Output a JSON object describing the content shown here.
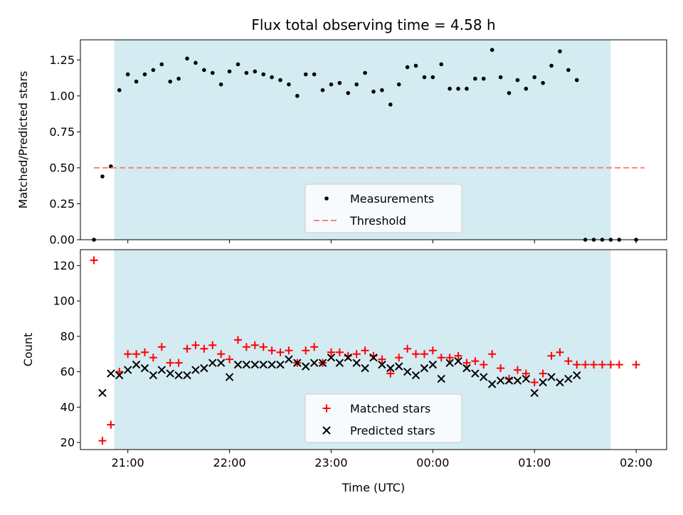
{
  "chart_data": [
    {
      "type": "scatter",
      "title": "Flux total observing time = 4.58 h",
      "xlabel": "",
      "ylabel": "Matched/Predicted stars",
      "ylim": [
        0.0,
        1.39
      ],
      "yticks": [
        0.0,
        0.25,
        0.5,
        0.75,
        1.0,
        1.25
      ],
      "ytick_labels": [
        "0.00",
        "0.25",
        "0.50",
        "0.75",
        "1.00",
        "1.25"
      ],
      "grid": false,
      "legend_position": "lower center",
      "observing_window": [
        "20:52",
        "01:45"
      ],
      "observing_window_color": "#add8e6",
      "series": [
        {
          "name": "Measurements",
          "marker": "dot",
          "color": "#000000",
          "points": [
            [
              "20:40",
              0.0
            ],
            [
              "20:45",
              0.44
            ],
            [
              "20:50",
              0.51
            ],
            [
              "20:55",
              1.04
            ],
            [
              "21:00",
              1.15
            ],
            [
              "21:05",
              1.1
            ],
            [
              "21:10",
              1.15
            ],
            [
              "21:15",
              1.18
            ],
            [
              "21:20",
              1.22
            ],
            [
              "21:25",
              1.1
            ],
            [
              "21:30",
              1.12
            ],
            [
              "21:35",
              1.26
            ],
            [
              "21:40",
              1.23
            ],
            [
              "21:45",
              1.18
            ],
            [
              "21:50",
              1.16
            ],
            [
              "21:55",
              1.08
            ],
            [
              "22:00",
              1.17
            ],
            [
              "22:05",
              1.22
            ],
            [
              "22:10",
              1.16
            ],
            [
              "22:15",
              1.17
            ],
            [
              "22:20",
              1.15
            ],
            [
              "22:25",
              1.13
            ],
            [
              "22:30",
              1.11
            ],
            [
              "22:35",
              1.08
            ],
            [
              "22:40",
              1.0
            ],
            [
              "22:45",
              1.15
            ],
            [
              "22:50",
              1.15
            ],
            [
              "22:55",
              1.04
            ],
            [
              "23:00",
              1.08
            ],
            [
              "23:05",
              1.09
            ],
            [
              "23:10",
              1.02
            ],
            [
              "23:15",
              1.08
            ],
            [
              "23:20",
              1.16
            ],
            [
              "23:25",
              1.03
            ],
            [
              "23:30",
              1.04
            ],
            [
              "23:35",
              0.94
            ],
            [
              "23:40",
              1.08
            ],
            [
              "23:45",
              1.2
            ],
            [
              "23:50",
              1.21
            ],
            [
              "23:55",
              1.13
            ],
            [
              "00:00",
              1.13
            ],
            [
              "00:05",
              1.22
            ],
            [
              "00:10",
              1.05
            ],
            [
              "00:15",
              1.05
            ],
            [
              "00:20",
              1.05
            ],
            [
              "00:25",
              1.12
            ],
            [
              "00:30",
              1.12
            ],
            [
              "00:35",
              1.32
            ],
            [
              "00:40",
              1.13
            ],
            [
              "00:45",
              1.02
            ],
            [
              "00:50",
              1.11
            ],
            [
              "00:55",
              1.05
            ],
            [
              "01:00",
              1.13
            ],
            [
              "01:05",
              1.09
            ],
            [
              "01:10",
              1.21
            ],
            [
              "01:15",
              1.31
            ],
            [
              "01:20",
              1.18
            ],
            [
              "01:25",
              1.11
            ],
            [
              "01:30",
              0.0
            ],
            [
              "01:35",
              0.0
            ],
            [
              "01:40",
              0.0
            ],
            [
              "01:45",
              0.0
            ],
            [
              "01:50",
              0.0
            ],
            [
              "02:00",
              0.0
            ]
          ]
        },
        {
          "name": "Threshold",
          "marker": "dashed-line",
          "color": "#ff7f7f",
          "points": [
            [
              "20:40",
              0.5
            ],
            [
              "02:05",
              0.5
            ]
          ]
        }
      ]
    },
    {
      "type": "scatter",
      "title": "",
      "xlabel": "Time (UTC)",
      "ylabel": "Count",
      "ylim": [
        16,
        129
      ],
      "yticks": [
        20,
        40,
        60,
        80,
        100,
        120
      ],
      "ytick_labels": [
        "20",
        "40",
        "60",
        "80",
        "100",
        "120"
      ],
      "x_range": [
        "20:32",
        "02:18"
      ],
      "xticks": [
        "21:00",
        "22:00",
        "23:00",
        "00:00",
        "01:00",
        "02:00"
      ],
      "xtick_labels": [
        "21:00",
        "22:00",
        "23:00",
        "00:00",
        "01:00",
        "02:00"
      ],
      "grid": false,
      "legend_position": "lower center",
      "observing_window": [
        "20:52",
        "01:45"
      ],
      "observing_window_color": "#add8e6",
      "series": [
        {
          "name": "Matched stars",
          "marker": "plus",
          "color": "#ff0000",
          "points": [
            [
              "20:40",
              123
            ],
            [
              "20:45",
              21
            ],
            [
              "20:50",
              30
            ],
            [
              "20:55",
              60
            ],
            [
              "21:00",
              70
            ],
            [
              "21:05",
              70
            ],
            [
              "21:10",
              71
            ],
            [
              "21:15",
              68
            ],
            [
              "21:20",
              74
            ],
            [
              "21:25",
              65
            ],
            [
              "21:30",
              65
            ],
            [
              "21:35",
              73
            ],
            [
              "21:40",
              75
            ],
            [
              "21:45",
              73
            ],
            [
              "21:50",
              75
            ],
            [
              "21:55",
              70
            ],
            [
              "22:00",
              67
            ],
            [
              "22:05",
              78
            ],
            [
              "22:10",
              74
            ],
            [
              "22:15",
              75
            ],
            [
              "22:20",
              74
            ],
            [
              "22:25",
              72
            ],
            [
              "22:30",
              71
            ],
            [
              "22:35",
              72
            ],
            [
              "22:40",
              65
            ],
            [
              "22:45",
              72
            ],
            [
              "22:50",
              74
            ],
            [
              "22:55",
              65
            ],
            [
              "23:00",
              71
            ],
            [
              "23:05",
              71
            ],
            [
              "23:10",
              69
            ],
            [
              "23:15",
              70
            ],
            [
              "23:20",
              72
            ],
            [
              "23:25",
              69
            ],
            [
              "23:30",
              67
            ],
            [
              "23:35",
              59
            ],
            [
              "23:40",
              68
            ],
            [
              "23:45",
              73
            ],
            [
              "23:50",
              70
            ],
            [
              "23:55",
              70
            ],
            [
              "00:00",
              72
            ],
            [
              "00:05",
              68
            ],
            [
              "00:10",
              68
            ],
            [
              "00:15",
              69
            ],
            [
              "00:20",
              65
            ],
            [
              "00:25",
              66
            ],
            [
              "00:30",
              64
            ],
            [
              "00:35",
              70
            ],
            [
              "00:40",
              62
            ],
            [
              "00:45",
              56
            ],
            [
              "00:50",
              61
            ],
            [
              "00:55",
              59
            ],
            [
              "01:00",
              54
            ],
            [
              "01:05",
              59
            ],
            [
              "01:10",
              69
            ],
            [
              "01:15",
              71
            ],
            [
              "01:20",
              66
            ],
            [
              "01:25",
              64
            ],
            [
              "01:30",
              64
            ],
            [
              "01:35",
              64
            ],
            [
              "01:40",
              64
            ],
            [
              "01:45",
              64
            ],
            [
              "01:50",
              64
            ],
            [
              "02:00",
              64
            ]
          ]
        },
        {
          "name": "Predicted stars",
          "marker": "x",
          "color": "#000000",
          "points": [
            [
              "20:45",
              48
            ],
            [
              "20:50",
              59
            ],
            [
              "20:55",
              58
            ],
            [
              "21:00",
              61
            ],
            [
              "21:05",
              64
            ],
            [
              "21:10",
              62
            ],
            [
              "21:15",
              58
            ],
            [
              "21:20",
              61
            ],
            [
              "21:25",
              59
            ],
            [
              "21:30",
              58
            ],
            [
              "21:35",
              58
            ],
            [
              "21:40",
              61
            ],
            [
              "21:45",
              62
            ],
            [
              "21:50",
              65
            ],
            [
              "21:55",
              65
            ],
            [
              "22:00",
              57
            ],
            [
              "22:05",
              64
            ],
            [
              "22:10",
              64
            ],
            [
              "22:15",
              64
            ],
            [
              "22:20",
              64
            ],
            [
              "22:25",
              64
            ],
            [
              "22:30",
              64
            ],
            [
              "22:35",
              67
            ],
            [
              "22:40",
              65
            ],
            [
              "22:45",
              63
            ],
            [
              "22:50",
              65
            ],
            [
              "22:55",
              65
            ],
            [
              "23:00",
              68
            ],
            [
              "23:05",
              65
            ],
            [
              "23:10",
              68
            ],
            [
              "23:15",
              65
            ],
            [
              "23:20",
              62
            ],
            [
              "23:25",
              68
            ],
            [
              "23:30",
              64
            ],
            [
              "23:35",
              62
            ],
            [
              "23:40",
              63
            ],
            [
              "23:45",
              60
            ],
            [
              "23:50",
              58
            ],
            [
              "23:55",
              62
            ],
            [
              "00:00",
              64
            ],
            [
              "00:05",
              56
            ],
            [
              "00:10",
              65
            ],
            [
              "00:15",
              66
            ],
            [
              "00:20",
              62
            ],
            [
              "00:25",
              59
            ],
            [
              "00:30",
              57
            ],
            [
              "00:35",
              53
            ],
            [
              "00:40",
              55
            ],
            [
              "00:45",
              55
            ],
            [
              "00:50",
              55
            ],
            [
              "00:55",
              56
            ],
            [
              "01:00",
              48
            ],
            [
              "01:05",
              54
            ],
            [
              "01:10",
              57
            ],
            [
              "01:15",
              54
            ],
            [
              "01:20",
              56
            ],
            [
              "01:25",
              58
            ]
          ]
        }
      ]
    }
  ]
}
